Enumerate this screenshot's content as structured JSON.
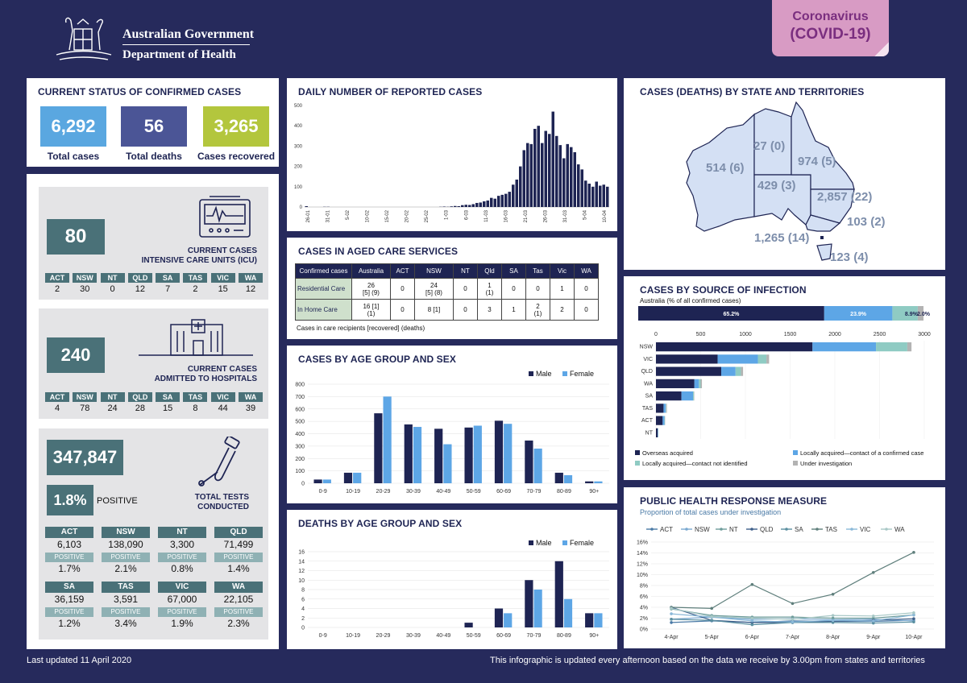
{
  "header": {
    "gov_line1": "Australian Government",
    "gov_line2": "Department of Health",
    "badge_line1": "Coronavirus",
    "badge_line2": "(COVID-19)"
  },
  "status": {
    "title": "CURRENT STATUS OF CONFIRMED CASES",
    "total_cases": "6,292",
    "total_cases_label": "Total cases",
    "total_deaths": "56",
    "total_deaths_label": "Total deaths",
    "recovered": "3,265",
    "recovered_label": "Cases recovered"
  },
  "icu": {
    "value": "80",
    "label_line1": "CURRENT CASES",
    "label_line2": "INTENSIVE CARE UNITS (ICU)",
    "states": [
      {
        "s": "ACT",
        "v": "2"
      },
      {
        "s": "NSW",
        "v": "30"
      },
      {
        "s": "NT",
        "v": "0"
      },
      {
        "s": "QLD",
        "v": "12"
      },
      {
        "s": "SA",
        "v": "7"
      },
      {
        "s": "TAS",
        "v": "2"
      },
      {
        "s": "VIC",
        "v": "15"
      },
      {
        "s": "WA",
        "v": "12"
      }
    ]
  },
  "hospital": {
    "value": "240",
    "label_line1": "CURRENT CASES",
    "label_line2": "ADMITTED TO HOSPITALS",
    "states": [
      {
        "s": "ACT",
        "v": "4"
      },
      {
        "s": "NSW",
        "v": "78"
      },
      {
        "s": "NT",
        "v": "24"
      },
      {
        "s": "QLD",
        "v": "28"
      },
      {
        "s": "SA",
        "v": "15"
      },
      {
        "s": "TAS",
        "v": "8"
      },
      {
        "s": "VIC",
        "v": "44"
      },
      {
        "s": "WA",
        "v": "39"
      }
    ]
  },
  "tests": {
    "value": "347,847",
    "positive_pct": "1.8%",
    "positive_word": "POSITIVE",
    "label_line1": "TOTAL TESTS",
    "label_line2": "CONDUCTED",
    "positive_label": "POSITIVE",
    "states": [
      {
        "s": "ACT",
        "v": "6,103",
        "p": "1.7%"
      },
      {
        "s": "NSW",
        "v": "138,090",
        "p": "2.1%"
      },
      {
        "s": "NT",
        "v": "3,300",
        "p": "0.8%"
      },
      {
        "s": "QLD",
        "v": "71,499",
        "p": "1.4%"
      },
      {
        "s": "SA",
        "v": "36,159",
        "p": "1.2%"
      },
      {
        "s": "TAS",
        "v": "3,591",
        "p": "3.4%"
      },
      {
        "s": "VIC",
        "v": "67,000",
        "p": "1.9%"
      },
      {
        "s": "WA",
        "v": "22,105",
        "p": "2.3%"
      }
    ]
  },
  "aged": {
    "title": "CASES IN AGED CARE SERVICES",
    "headers": [
      "Confirmed cases",
      "Australia",
      "ACT",
      "NSW",
      "NT",
      "Qld",
      "SA",
      "Tas",
      "Vic",
      "WA"
    ],
    "rows": [
      {
        "label": "Residential Care",
        "cells": [
          "26\n[5] (9)",
          "0",
          "24\n[5] (8)",
          "0",
          "1\n(1)",
          "0",
          "0",
          "1",
          "0"
        ]
      },
      {
        "label": "In Home Care",
        "cells": [
          "16 [1]\n(1)",
          "0",
          "8 [1]",
          "0",
          "3",
          "1",
          "2\n(1)",
          "2",
          "0"
        ]
      }
    ],
    "note": "Cases in care recipients [recovered] (deaths)"
  },
  "map": {
    "title": "CASES (DEATHS) BY STATE AND TERRITORIES",
    "labels": {
      "WA": "514 (6)",
      "NT": "27 (0)",
      "QLD": "974 (5)",
      "SA": "429 (3)",
      "NSW": "2,857 (22)",
      "ACT": "103 (2)",
      "VIC": "1,265 (14)",
      "TAS": "123 (4)"
    }
  },
  "footer": {
    "left": "Last updated 11 April 2020",
    "right": "This infographic is updated every afternoon based on the data we receive by 3.00pm from states and territories"
  },
  "chart_data": [
    {
      "id": "daily",
      "type": "bar",
      "title": "DAILY NUMBER OF REPORTED CASES",
      "ylim": [
        0,
        500
      ],
      "yticks": [
        0,
        100,
        200,
        300,
        400,
        500
      ],
      "xtick_labels": [
        "26-01",
        "31-01",
        "5-02",
        "10-02",
        "15-02",
        "20-02",
        "25-02",
        "1-03",
        "6-03",
        "11-03",
        "16-03",
        "21-03",
        "26-03",
        "31-03",
        "5-04",
        "10-04"
      ],
      "values": [
        4,
        0,
        0,
        0,
        0,
        1,
        1,
        0,
        0,
        0,
        0,
        0,
        0,
        0,
        0,
        0,
        0,
        0,
        0,
        0,
        0,
        0,
        0,
        0,
        0,
        0,
        0,
        0,
        0,
        0,
        0,
        0,
        0,
        0,
        0,
        0,
        0,
        1,
        2,
        1,
        3,
        5,
        4,
        9,
        11,
        10,
        14,
        20,
        22,
        28,
        32,
        45,
        41,
        55,
        60,
        65,
        75,
        110,
        135,
        200,
        280,
        315,
        310,
        385,
        400,
        315,
        375,
        360,
        470,
        350,
        305,
        240,
        310,
        295,
        270,
        210,
        185,
        130,
        115,
        100,
        125,
        105,
        110,
        100
      ]
    },
    {
      "id": "age_cases",
      "type": "bar",
      "title": "CASES BY AGE GROUP AND SEX",
      "categories": [
        "0-9",
        "10-19",
        "20-29",
        "30-39",
        "40-49",
        "50-59",
        "60-69",
        "70-79",
        "80-89",
        "90+"
      ],
      "ylim": [
        0,
        800
      ],
      "yticks": [
        0,
        100,
        200,
        300,
        400,
        500,
        600,
        700,
        800
      ],
      "series": [
        {
          "name": "Male",
          "color": "#1e2453",
          "values": [
            30,
            85,
            565,
            475,
            440,
            450,
            505,
            345,
            85,
            15
          ]
        },
        {
          "name": "Female",
          "color": "#5da6e6",
          "values": [
            30,
            85,
            700,
            455,
            315,
            465,
            480,
            280,
            65,
            15
          ]
        }
      ]
    },
    {
      "id": "age_deaths",
      "type": "bar",
      "title": "DEATHS BY AGE GROUP AND SEX",
      "categories": [
        "0-9",
        "10-19",
        "20-29",
        "30-39",
        "40-49",
        "50-59",
        "60-69",
        "70-79",
        "80-89",
        "90+"
      ],
      "ylim": [
        0,
        16
      ],
      "yticks": [
        0,
        2,
        4,
        6,
        8,
        10,
        12,
        14,
        16
      ],
      "series": [
        {
          "name": "Male",
          "color": "#1e2453",
          "values": [
            0,
            0,
            0,
            0,
            0,
            1,
            4,
            10,
            14,
            3
          ]
        },
        {
          "name": "Female",
          "color": "#5da6e6",
          "values": [
            0,
            0,
            0,
            0,
            0,
            0,
            3,
            8,
            6,
            3
          ]
        }
      ]
    },
    {
      "id": "source",
      "type": "bar",
      "title": "CASES BY SOURCE OF INFECTION",
      "subtitle": "Australia (% of all confirmed cases)",
      "australia_pct": [
        65.2,
        23.9,
        8.9,
        2.0
      ],
      "australia_labels": [
        "65.2%",
        "23.9%",
        "8.9%",
        "2.0%"
      ],
      "categories": [
        "NSW",
        "VIC",
        "QLD",
        "WA",
        "SA",
        "TAS",
        "ACT",
        "NT"
      ],
      "xlim": [
        0,
        3000
      ],
      "xticks": [
        0,
        500,
        1000,
        1500,
        2000,
        2500,
        3000
      ],
      "series": [
        {
          "name": "Overseas acquired",
          "color": "#1e2453",
          "values": [
            1750,
            690,
            730,
            430,
            285,
            85,
            75,
            20
          ]
        },
        {
          "name": "Locally acquired—contact of a confirmed case",
          "color": "#5da6e6",
          "values": [
            710,
            450,
            160,
            50,
            130,
            25,
            20,
            5
          ]
        },
        {
          "name": "Locally acquired—contact not identified",
          "color": "#8fcbc3",
          "values": [
            350,
            95,
            60,
            20,
            10,
            5,
            5,
            2
          ]
        },
        {
          "name": "Under investigation",
          "color": "#b3b3b3",
          "values": [
            47,
            30,
            24,
            14,
            4,
            8,
            3,
            0
          ]
        }
      ]
    },
    {
      "id": "public_health",
      "type": "line",
      "title": "PUBLIC HEALTH RESPONSE MEASURE",
      "subtitle": "Proportion of total cases under investigation",
      "x": [
        "4-Apr",
        "5-Apr",
        "6-Apr",
        "7-Apr",
        "8-Apr",
        "9-Apr",
        "10-Apr"
      ],
      "ylim": [
        0,
        16
      ],
      "yticks": [
        "0%",
        "2%",
        "4%",
        "6%",
        "8%",
        "10%",
        "12%",
        "14%",
        "16%"
      ],
      "series": [
        {
          "name": "ACT",
          "color": "#4a7aa6",
          "values": [
            1.2,
            1.5,
            1.2,
            1.5,
            1.4,
            1.4,
            1.6
          ]
        },
        {
          "name": "NSW",
          "color": "#79a8d0",
          "values": [
            1.8,
            2.2,
            1.8,
            1.9,
            1.7,
            1.8,
            1.5
          ]
        },
        {
          "name": "NT",
          "color": "#6e9c9b",
          "values": [
            3.7,
            2.5,
            2.2,
            2.2,
            2.0,
            2.0,
            2.6
          ]
        },
        {
          "name": "QLD",
          "color": "#3e5f8a",
          "values": [
            4.0,
            1.6,
            1.2,
            1.2,
            1.4,
            1.6,
            1.9
          ]
        },
        {
          "name": "SA",
          "color": "#5a8fa0",
          "values": [
            1.8,
            1.6,
            0.8,
            1.2,
            1.2,
            1.1,
            1.3
          ]
        },
        {
          "name": "TAS",
          "color": "#5f7f7c",
          "values": [
            4.0,
            3.8,
            8.2,
            4.7,
            6.4,
            10.4,
            14.1
          ]
        },
        {
          "name": "VIC",
          "color": "#8ab8d8",
          "values": [
            2.8,
            2.2,
            1.5,
            1.3,
            1.6,
            1.5,
            2.6
          ]
        },
        {
          "name": "WA",
          "color": "#a8c8c6",
          "values": [
            3.8,
            2.3,
            2.0,
            1.8,
            2.5,
            2.4,
            3.0
          ]
        }
      ]
    }
  ]
}
